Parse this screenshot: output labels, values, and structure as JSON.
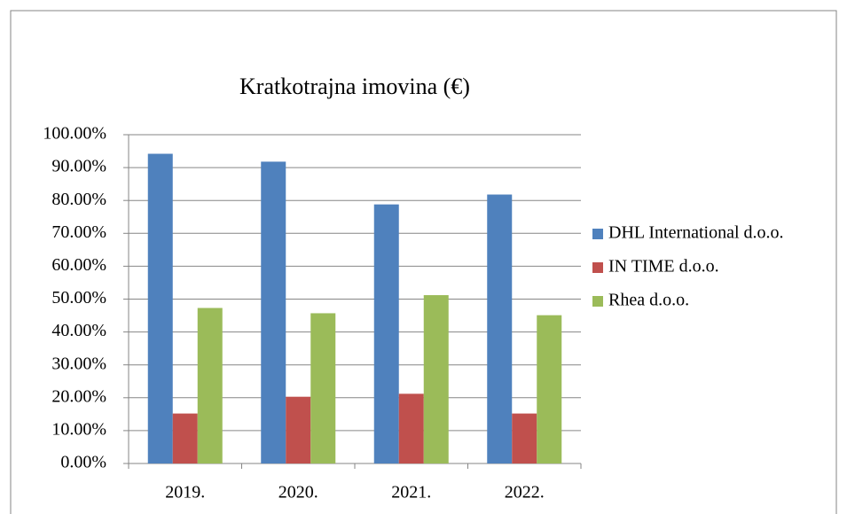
{
  "chart_data": {
    "type": "bar",
    "title": "Kratkotrajna imovina (€)",
    "categories": [
      "2019.",
      "2020.",
      "2021.",
      "2022."
    ],
    "series": [
      {
        "name": "DHL International d.o.o.",
        "color": "#4f81bd",
        "values": [
          94.2,
          91.8,
          78.8,
          81.8
        ]
      },
      {
        "name": "IN TIME d.o.o.",
        "color": "#c0504d",
        "values": [
          15.2,
          20.3,
          21.2,
          15.2
        ]
      },
      {
        "name": "Rhea d.o.o.",
        "color": "#9bbb59",
        "values": [
          47.3,
          45.7,
          51.2,
          45.1
        ]
      }
    ],
    "ylim": [
      0,
      100
    ],
    "yticks": [
      {
        "value": 0,
        "label": "0.00%"
      },
      {
        "value": 10,
        "label": "10.00%"
      },
      {
        "value": 20,
        "label": "20.00%"
      },
      {
        "value": 30,
        "label": "30.00%"
      },
      {
        "value": 40,
        "label": "40.00%"
      },
      {
        "value": 50,
        "label": "50.00%"
      },
      {
        "value": 60,
        "label": "60.00%"
      },
      {
        "value": 70,
        "label": "70.00%"
      },
      {
        "value": 80,
        "label": "80.00%"
      },
      {
        "value": 90,
        "label": "90.00%"
      },
      {
        "value": 100,
        "label": "100.00%"
      }
    ],
    "grid": true,
    "legend": "right"
  }
}
